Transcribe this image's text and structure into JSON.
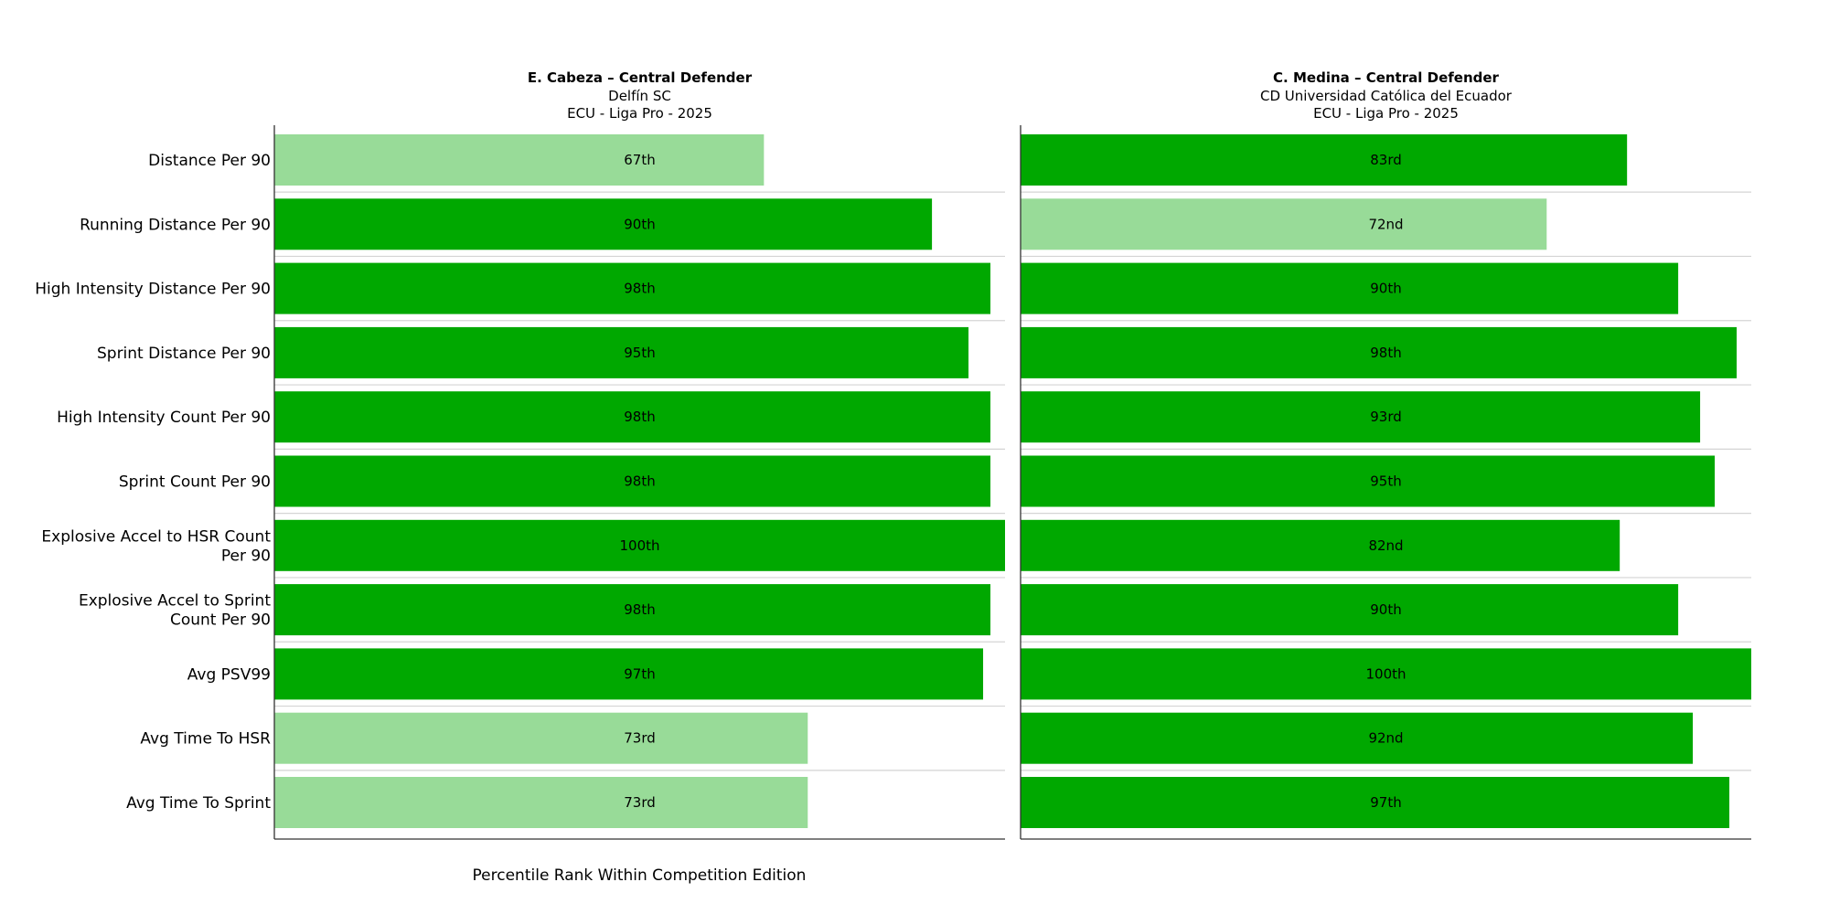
{
  "chart_data": {
    "type": "bar",
    "orientation": "horizontal",
    "categories": [
      [
        "Distance Per 90"
      ],
      [
        "Running Distance Per 90"
      ],
      [
        "High Intensity Distance Per 90"
      ],
      [
        "Sprint Distance Per 90"
      ],
      [
        "High Intensity Count Per 90"
      ],
      [
        "Sprint Count Per 90"
      ],
      [
        "Explosive Accel to HSR Count",
        "Per 90"
      ],
      [
        "Explosive Accel to Sprint",
        "Count Per 90"
      ],
      [
        "Avg PSV99"
      ],
      [
        "Avg Time To HSR"
      ],
      [
        "Avg Time To Sprint"
      ]
    ],
    "xlabel": "Percentile Rank Within Competition Edition",
    "xlim": [
      0,
      100
    ],
    "grid": "horizontal separators",
    "colors": {
      "high": "#00a800",
      "mid": "#98db98",
      "axis": "#333333",
      "grid": "#d4d4d4"
    },
    "panels": [
      {
        "title": "E. Cabeza – Central Defender",
        "subtitle": "Delfín SC",
        "competition": "ECU - Liga Pro - 2025",
        "values": [
          67,
          90,
          98,
          95,
          98,
          98,
          100,
          98,
          97,
          73,
          73
        ],
        "labels": [
          "67th",
          "90th",
          "98th",
          "95th",
          "98th",
          "98th",
          "100th",
          "98th",
          "97th",
          "73rd",
          "73rd"
        ]
      },
      {
        "title": "C. Medina – Central Defender",
        "subtitle": "CD Universidad Católica del Ecuador",
        "competition": "ECU - Liga Pro - 2025",
        "values": [
          83,
          72,
          90,
          98,
          93,
          95,
          82,
          90,
          100,
          92,
          97
        ],
        "labels": [
          "83rd",
          "72nd",
          "90th",
          "98th",
          "93rd",
          "95th",
          "82nd",
          "90th",
          "100th",
          "92nd",
          "97th"
        ]
      }
    ]
  }
}
